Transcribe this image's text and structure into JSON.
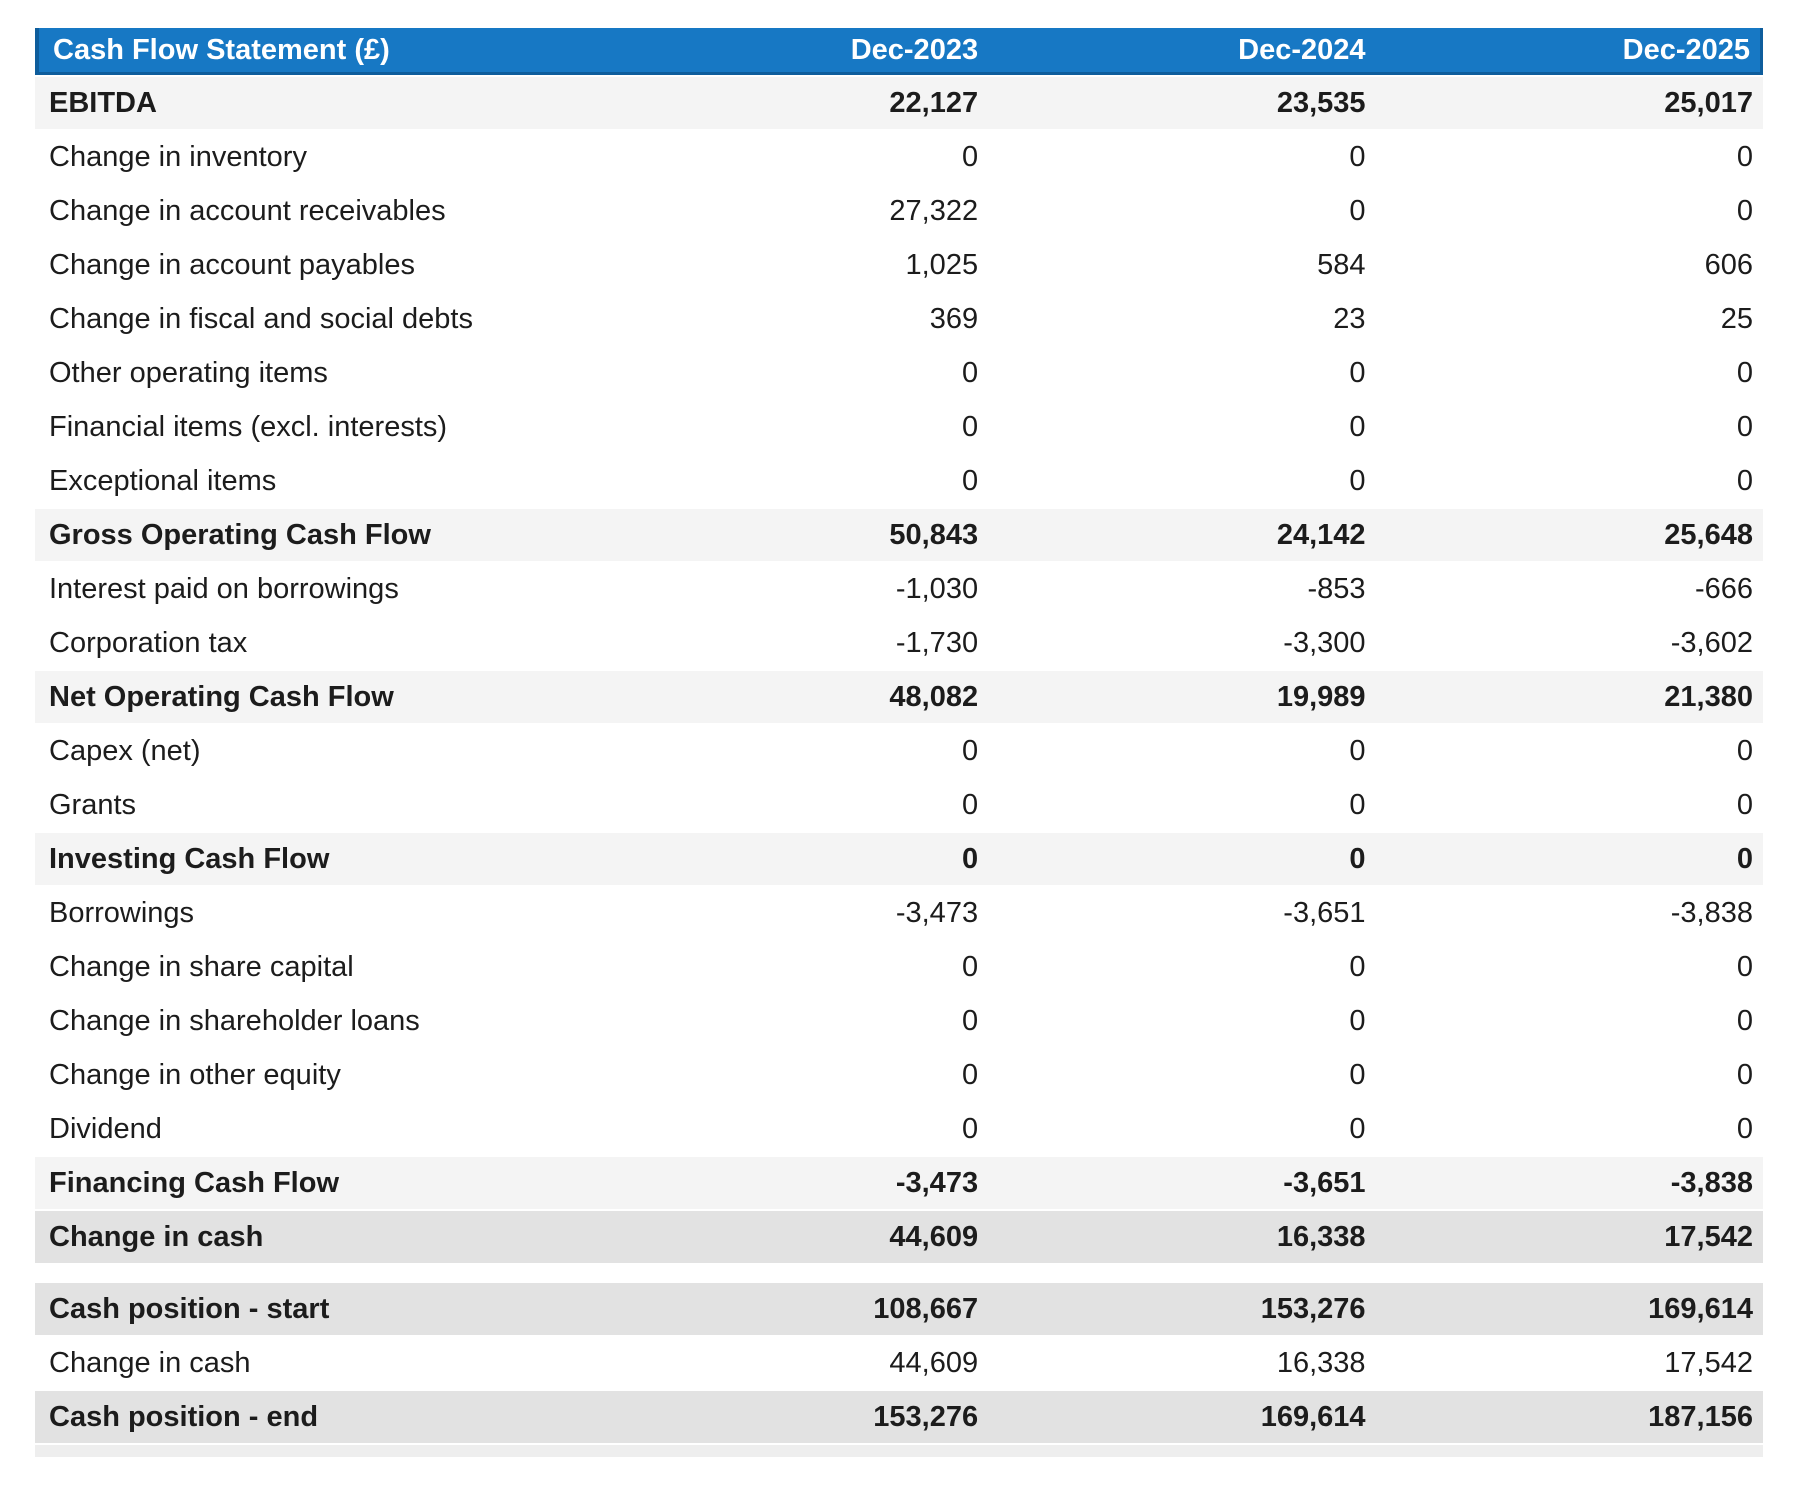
{
  "header": {
    "title": "Cash Flow Statement (£)",
    "columns": [
      "Dec-2023",
      "Dec-2024",
      "Dec-2025"
    ]
  },
  "colors": {
    "header_bg": "#1778c4",
    "header_border": "#0e5d9c",
    "header_text": "#ffffff",
    "subtotal_bg": "#f4f4f4",
    "strong_bg": "#e2e2e2",
    "footer_bg": "#eeeeee",
    "text": "#1c1c1c"
  },
  "rows": [
    {
      "label": "EBITDA",
      "values": [
        "22,127",
        "23,535",
        "25,017"
      ],
      "style": "subtotal"
    },
    {
      "label": "Change in inventory",
      "values": [
        "0",
        "0",
        "0"
      ],
      "style": "normal"
    },
    {
      "label": "Change in account receivables",
      "values": [
        "27,322",
        "0",
        "0"
      ],
      "style": "normal"
    },
    {
      "label": "Change in account payables",
      "values": [
        "1,025",
        "584",
        "606"
      ],
      "style": "normal"
    },
    {
      "label": "Change in fiscal and social debts",
      "values": [
        "369",
        "23",
        "25"
      ],
      "style": "normal"
    },
    {
      "label": "Other operating items",
      "values": [
        "0",
        "0",
        "0"
      ],
      "style": "normal"
    },
    {
      "label": "Financial items (excl. interests)",
      "values": [
        "0",
        "0",
        "0"
      ],
      "style": "normal"
    },
    {
      "label": "Exceptional items",
      "values": [
        "0",
        "0",
        "0"
      ],
      "style": "normal"
    },
    {
      "label": "Gross Operating Cash Flow",
      "values": [
        "50,843",
        "24,142",
        "25,648"
      ],
      "style": "subtotal"
    },
    {
      "label": "Interest paid on borrowings",
      "values": [
        "-1,030",
        "-853",
        "-666"
      ],
      "style": "normal"
    },
    {
      "label": "Corporation tax",
      "values": [
        "-1,730",
        "-3,300",
        "-3,602"
      ],
      "style": "normal"
    },
    {
      "label": "Net Operating Cash Flow",
      "values": [
        "48,082",
        "19,989",
        "21,380"
      ],
      "style": "subtotal"
    },
    {
      "label": "Capex (net)",
      "values": [
        "0",
        "0",
        "0"
      ],
      "style": "normal"
    },
    {
      "label": "Grants",
      "values": [
        "0",
        "0",
        "0"
      ],
      "style": "normal"
    },
    {
      "label": "Investing Cash Flow",
      "values": [
        "0",
        "0",
        "0"
      ],
      "style": "subtotal"
    },
    {
      "label": "Borrowings",
      "values": [
        "-3,473",
        "-3,651",
        "-3,838"
      ],
      "style": "normal"
    },
    {
      "label": "Change in share capital",
      "values": [
        "0",
        "0",
        "0"
      ],
      "style": "normal"
    },
    {
      "label": "Change in shareholder loans",
      "values": [
        "0",
        "0",
        "0"
      ],
      "style": "normal"
    },
    {
      "label": "Change in other equity",
      "values": [
        "0",
        "0",
        "0"
      ],
      "style": "normal"
    },
    {
      "label": "Dividend",
      "values": [
        "0",
        "0",
        "0"
      ],
      "style": "normal"
    },
    {
      "label": "Financing Cash Flow",
      "values": [
        "-3,473",
        "-3,651",
        "-3,838"
      ],
      "style": "subtotal"
    },
    {
      "label": "Change in cash",
      "values": [
        "44,609",
        "16,338",
        "17,542"
      ],
      "style": "strong"
    },
    {
      "label": "",
      "values": [
        "",
        "",
        ""
      ],
      "style": "spacer"
    },
    {
      "label": "Cash position - start",
      "values": [
        "108,667",
        "153,276",
        "169,614"
      ],
      "style": "strong"
    },
    {
      "label": "Change in cash",
      "values": [
        "44,609",
        "16,338",
        "17,542"
      ],
      "style": "normal"
    },
    {
      "label": "Cash position - end",
      "values": [
        "153,276",
        "169,614",
        "187,156"
      ],
      "style": "strong"
    }
  ],
  "chart_data": {
    "type": "table",
    "title": "Cash Flow Statement (£)",
    "columns": [
      "Dec-2023",
      "Dec-2024",
      "Dec-2025"
    ],
    "rows": [
      {
        "label": "EBITDA",
        "values": [
          22127,
          23535,
          25017
        ]
      },
      {
        "label": "Change in inventory",
        "values": [
          0,
          0,
          0
        ]
      },
      {
        "label": "Change in account receivables",
        "values": [
          27322,
          0,
          0
        ]
      },
      {
        "label": "Change in account payables",
        "values": [
          1025,
          584,
          606
        ]
      },
      {
        "label": "Change in fiscal and social debts",
        "values": [
          369,
          23,
          25
        ]
      },
      {
        "label": "Other operating items",
        "values": [
          0,
          0,
          0
        ]
      },
      {
        "label": "Financial items (excl. interests)",
        "values": [
          0,
          0,
          0
        ]
      },
      {
        "label": "Exceptional items",
        "values": [
          0,
          0,
          0
        ]
      },
      {
        "label": "Gross Operating Cash Flow",
        "values": [
          50843,
          24142,
          25648
        ]
      },
      {
        "label": "Interest paid on borrowings",
        "values": [
          -1030,
          -853,
          -666
        ]
      },
      {
        "label": "Corporation tax",
        "values": [
          -1730,
          -3300,
          -3602
        ]
      },
      {
        "label": "Net Operating Cash Flow",
        "values": [
          48082,
          19989,
          21380
        ]
      },
      {
        "label": "Capex (net)",
        "values": [
          0,
          0,
          0
        ]
      },
      {
        "label": "Grants",
        "values": [
          0,
          0,
          0
        ]
      },
      {
        "label": "Investing Cash Flow",
        "values": [
          0,
          0,
          0
        ]
      },
      {
        "label": "Borrowings",
        "values": [
          -3473,
          -3651,
          -3838
        ]
      },
      {
        "label": "Change in share capital",
        "values": [
          0,
          0,
          0
        ]
      },
      {
        "label": "Change in shareholder loans",
        "values": [
          0,
          0,
          0
        ]
      },
      {
        "label": "Change in other equity",
        "values": [
          0,
          0,
          0
        ]
      },
      {
        "label": "Dividend",
        "values": [
          0,
          0,
          0
        ]
      },
      {
        "label": "Financing Cash Flow",
        "values": [
          -3473,
          -3651,
          -3838
        ]
      },
      {
        "label": "Change in cash",
        "values": [
          44609,
          16338,
          17542
        ]
      },
      {
        "label": "Cash position - start",
        "values": [
          108667,
          153276,
          169614
        ]
      },
      {
        "label": "Change in cash",
        "values": [
          44609,
          16338,
          17542
        ]
      },
      {
        "label": "Cash position - end",
        "values": [
          153276,
          169614,
          187156
        ]
      }
    ]
  }
}
